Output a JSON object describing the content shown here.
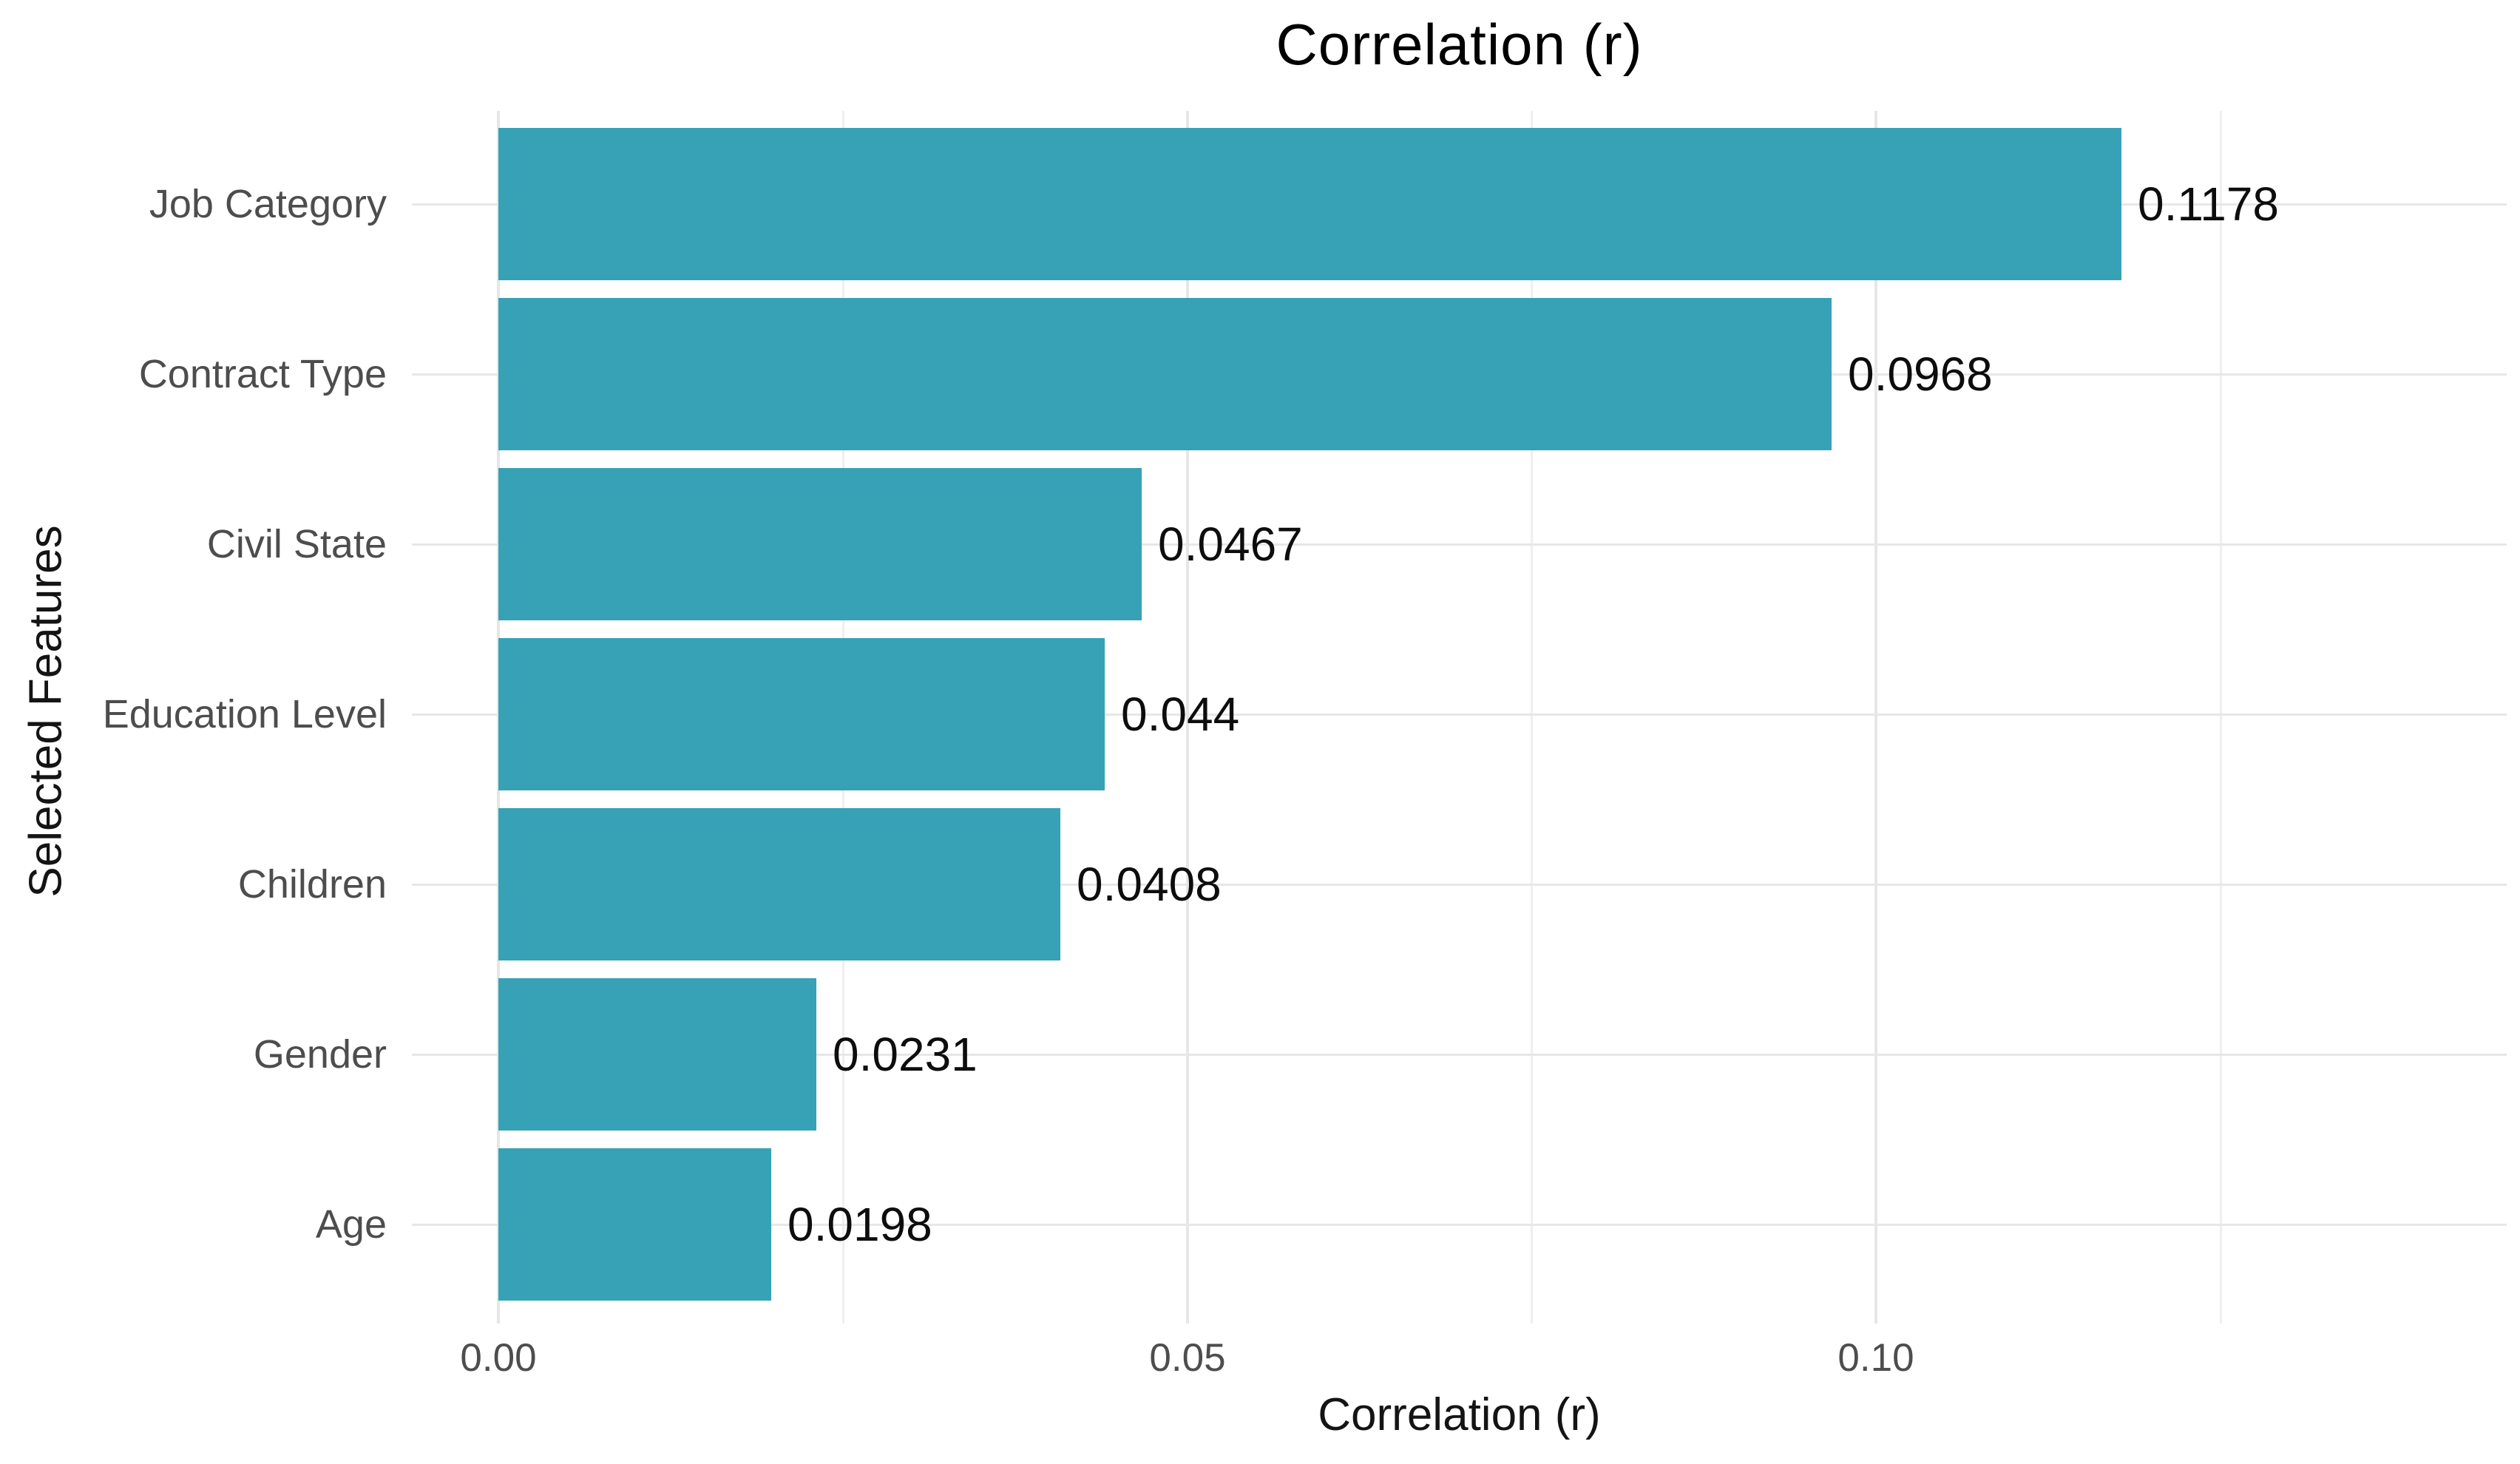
{
  "chart_data": {
    "type": "bar",
    "orientation": "horizontal",
    "title": "Correlation (r)",
    "xlabel": "Correlation (r)",
    "ylabel": "Selected Features",
    "categories": [
      "Job Category",
      "Contract Type",
      "Civil State",
      "Education Level",
      "Children",
      "Gender",
      "Age"
    ],
    "values": [
      0.1178,
      0.0968,
      0.0467,
      0.044,
      0.0408,
      0.0231,
      0.0198
    ],
    "value_labels": [
      "0.1178",
      "0.0968",
      "0.0467",
      "0.044",
      "0.0408",
      "0.0231",
      "0.0198"
    ],
    "x_ticks": [
      {
        "value": 0.0,
        "label": "0.00"
      },
      {
        "value": 0.05,
        "label": "0.05"
      },
      {
        "value": 0.1,
        "label": "0.10"
      }
    ],
    "x_minor_ticks": [
      0.025,
      0.075,
      0.125
    ],
    "xlim": [
      -0.0063,
      0.1459
    ],
    "grid": "light gray vertical major+minor, horizontal line per category",
    "legend": false,
    "colors": {
      "bar": "#37a1b5",
      "grid_major": "#e6e6e6",
      "grid_minor": "#efefef",
      "axis_text": "#4d4d4d",
      "title_text": "#000000",
      "label_text": "#0d0d0d",
      "background": "#ffffff"
    }
  }
}
